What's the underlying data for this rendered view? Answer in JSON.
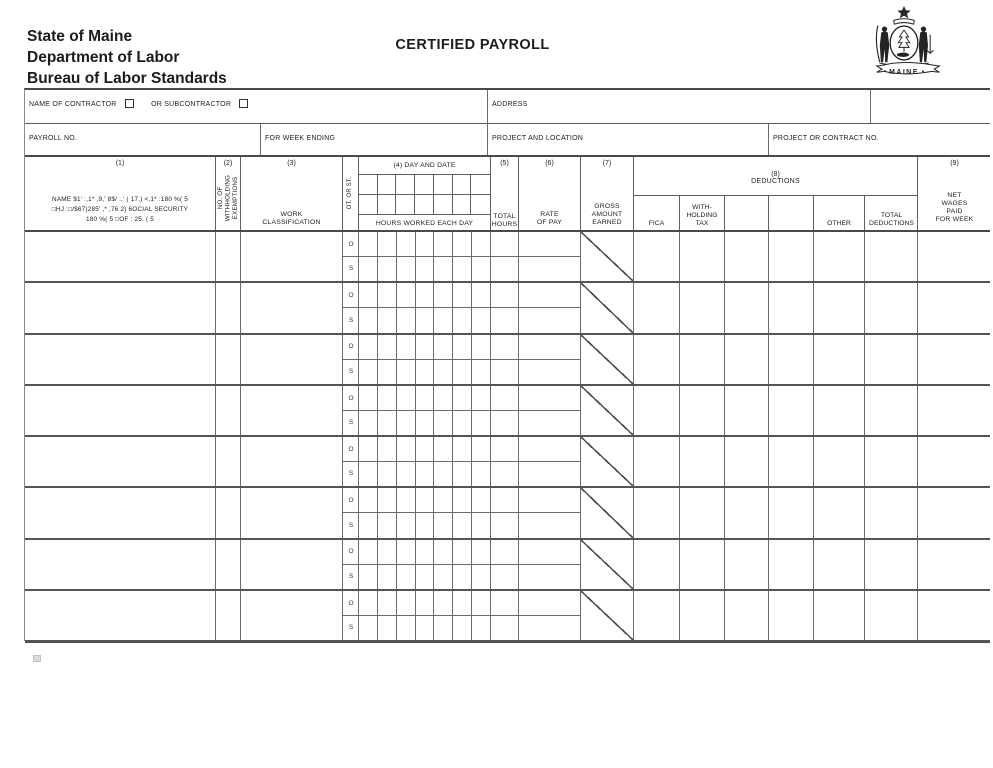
{
  "header": {
    "agency_lines": [
      "State of Maine",
      "Department of Labor",
      "Bureau of Labor Standards"
    ],
    "title": "CERTIFIED PAYROLL",
    "seal": {
      "name": "maine-state-seal",
      "banner_text": "MAINE"
    }
  },
  "info": {
    "name_of_contractor": "NAME OF CONTRACTOR",
    "or_subcontractor": "OR SUBCONTRACTOR",
    "address": "ADDRESS",
    "payroll_no": "PAYROLL NO.",
    "for_week_ending": "FOR WEEK ENDING",
    "project_and_location": "PROJECT AND LOCATION",
    "project_or_contract_no": "PROJECT OR CONTRACT NO."
  },
  "table": {
    "col1": {
      "number": "(1)",
      "text": "NAME $1' :,1* ,9,' 8$/ :,' ( 17,) <,1* :180 %( 5\n□HJ :□/$67)285' ,* ,76 2) 6OCIAL SECURITY\n180 %( 5 □OF : 25. ( 5"
    },
    "col2": {
      "number": "(2)",
      "vertical_text": "NO. OF\nWITHHOLDING\nEXEMPTIONS"
    },
    "col3": {
      "number": "(3)",
      "label": "WORK\nCLASSIFICATION"
    },
    "col4": {
      "title": "(4) DAY AND DATE",
      "hours_label": "HOURS WORKED EACH DAY",
      "ot_or_st": "OT. OR ST.",
      "day_columns": 7
    },
    "col5": {
      "number": "(5)",
      "label": "TOTAL\nHOURS"
    },
    "col6": {
      "number": "(6)",
      "label": "RATE\nOF PAY"
    },
    "col7": {
      "number": "(7)",
      "label": "GROSS\nAMOUNT\nEARNED"
    },
    "col8": {
      "number": "(8)",
      "label": "DEDUCTIONS",
      "sub_columns": [
        "FICA",
        "WITH-\nHOLDING\nTAX",
        "",
        "",
        "OTHER",
        "TOTAL\nDEDUCTIONS"
      ]
    },
    "col9": {
      "number": "(9)",
      "label": "NET\nWAGES\nPAID\nFOR WEEK"
    }
  },
  "body": {
    "employee_rows": 8,
    "overtime_label": "O",
    "straight_label": "S"
  },
  "colors": {
    "line": "#4a4a4a",
    "text": "#1c1c1c",
    "background": "#ffffff"
  }
}
